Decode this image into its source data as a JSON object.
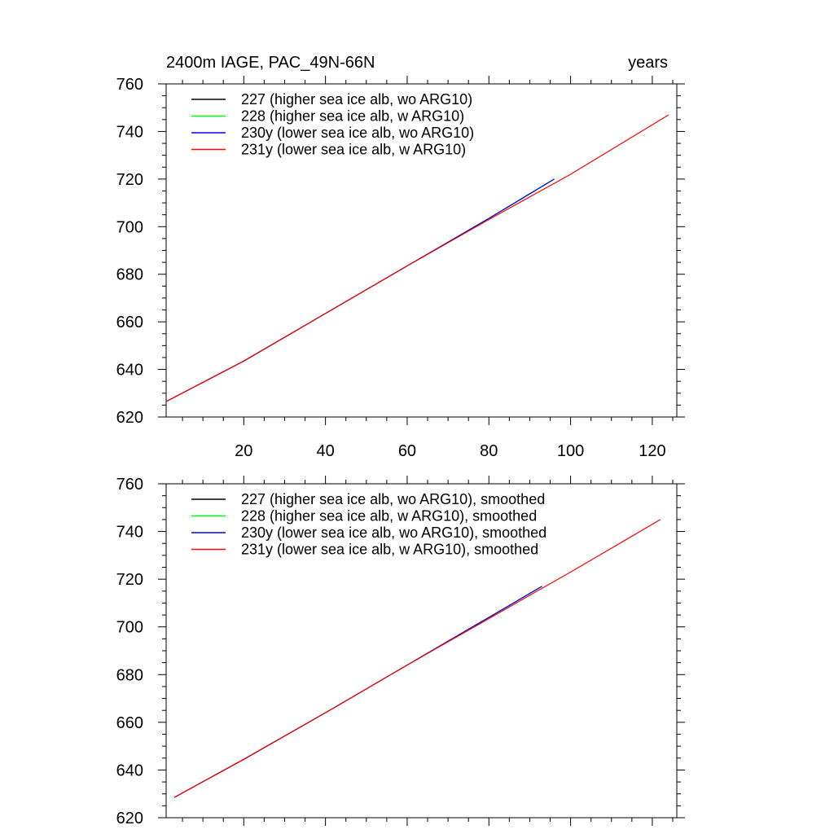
{
  "figure": {
    "title_left": "2400m IAGE, PAC_49N-66N",
    "title_right": "years"
  },
  "chart_data": [
    {
      "type": "line",
      "title": "2400m IAGE, PAC_49N-66N",
      "units_label": "years",
      "xlim": [
        1,
        126
      ],
      "ylim": [
        620,
        760
      ],
      "x_ticks": [
        20,
        40,
        60,
        80,
        100,
        120
      ],
      "y_ticks": [
        620,
        640,
        660,
        680,
        700,
        720,
        740,
        760
      ],
      "legend_position": "top-left",
      "series": [
        {
          "name": "227 (higher sea ice alb, wo ARG10)",
          "color": "#000000",
          "x": [
            1,
            20,
            40,
            60,
            80,
            96
          ],
          "y": [
            626.5,
            643.5,
            663.5,
            683.5,
            703.5,
            720.0
          ]
        },
        {
          "name": "228 (higher sea ice alb, w ARG10)",
          "color": "#00ff00",
          "x": [
            1,
            20,
            40,
            60,
            80,
            96
          ],
          "y": [
            626.5,
            643.5,
            663.5,
            683.5,
            703.5,
            720.0
          ]
        },
        {
          "name": "230y (lower sea ice alb, wo ARG10)",
          "color": "#0000ff",
          "x": [
            1,
            20,
            40,
            60,
            80,
            96
          ],
          "y": [
            626.5,
            643.5,
            663.5,
            683.5,
            703.5,
            720.0
          ]
        },
        {
          "name": "231y (lower sea ice alb, w ARG10)",
          "color": "#ff0000",
          "x": [
            1,
            20,
            40,
            60,
            80,
            100,
            124
          ],
          "y": [
            626.5,
            643.5,
            663.5,
            683.5,
            703.0,
            722.0,
            747.0
          ]
        }
      ]
    },
    {
      "type": "line",
      "xlim": [
        1,
        126
      ],
      "ylim": [
        620,
        760
      ],
      "y_ticks": [
        620,
        640,
        660,
        680,
        700,
        720,
        740,
        760
      ],
      "legend_position": "top-left",
      "series": [
        {
          "name": "227 (higher sea ice alb, wo ARG10), smoothed",
          "color": "#000000",
          "x": [
            3,
            20,
            40,
            60,
            80,
            93
          ],
          "y": [
            628.5,
            644.5,
            664.0,
            684.0,
            704.0,
            717.0
          ]
        },
        {
          "name": "228 (higher sea ice alb, w ARG10), smoothed",
          "color": "#00ff00",
          "x": [
            3,
            20,
            40,
            60,
            80,
            93
          ],
          "y": [
            628.5,
            644.5,
            664.0,
            684.0,
            704.0,
            717.0
          ]
        },
        {
          "name": "230y (lower sea ice alb, wo ARG10), smoothed",
          "color": "#0000ff",
          "x": [
            3,
            20,
            40,
            60,
            80,
            93
          ],
          "y": [
            628.5,
            644.5,
            664.0,
            684.0,
            704.0,
            717.0
          ]
        },
        {
          "name": "231y (lower sea ice alb, w ARG10), smoothed",
          "color": "#ff0000",
          "x": [
            3,
            20,
            40,
            60,
            80,
            100,
            122
          ],
          "y": [
            628.5,
            644.5,
            664.0,
            684.0,
            703.5,
            723.0,
            745.0
          ]
        }
      ]
    }
  ]
}
